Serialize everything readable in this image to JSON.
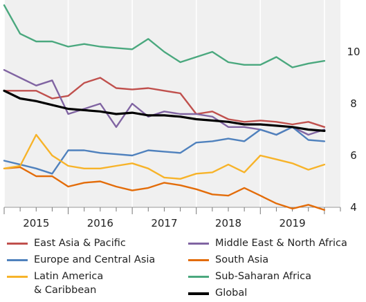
{
  "chart_data": {
    "type": "line",
    "title": "",
    "xlabel": "",
    "ylabel": "",
    "x_ticks": [
      "2015",
      "2016",
      "2017",
      "2018",
      "2019"
    ],
    "y_ticks": [
      4,
      6,
      8,
      10
    ],
    "ylim": [
      4,
      12
    ],
    "xlim": [
      2014.5,
      2019.75
    ],
    "grid": "vertical",
    "legend_position": "bottom",
    "series": [
      {
        "name": "East Asia & Pacific",
        "color": "#c0504d",
        "x": [
          2014.5,
          2014.75,
          2015.0,
          2015.25,
          2015.5,
          2015.75,
          2016.0,
          2016.25,
          2016.5,
          2016.75,
          2017.0,
          2017.25,
          2017.5,
          2017.75,
          2018.0,
          2018.25,
          2018.5,
          2018.75,
          2019.0,
          2019.25,
          2019.5
        ],
        "values": [
          8.5,
          8.5,
          8.5,
          8.2,
          8.3,
          8.8,
          9.0,
          8.6,
          8.55,
          8.6,
          8.5,
          8.4,
          7.6,
          7.7,
          7.4,
          7.3,
          7.35,
          7.3,
          7.2,
          7.3,
          7.1
        ]
      },
      {
        "name": "Middle East & North Africa",
        "color": "#8064a2",
        "x": [
          2014.5,
          2014.75,
          2015.0,
          2015.25,
          2015.5,
          2015.75,
          2016.0,
          2016.25,
          2016.5,
          2016.75,
          2017.0,
          2017.25,
          2017.5,
          2017.75,
          2018.0,
          2018.25,
          2018.5,
          2018.75,
          2019.0,
          2019.25,
          2019.5
        ],
        "values": [
          9.3,
          9.0,
          8.7,
          8.9,
          7.6,
          7.8,
          8.0,
          7.1,
          8.0,
          7.5,
          7.7,
          7.6,
          7.6,
          7.5,
          7.1,
          7.1,
          7.0,
          6.8,
          7.1,
          6.8,
          7.0
        ]
      },
      {
        "name": "Europe and Central Asia",
        "color": "#4f81bd",
        "x": [
          2014.5,
          2014.75,
          2015.0,
          2015.25,
          2015.5,
          2015.75,
          2016.0,
          2016.25,
          2016.5,
          2016.75,
          2017.0,
          2017.25,
          2017.5,
          2017.75,
          2018.0,
          2018.25,
          2018.5,
          2018.75,
          2019.0,
          2019.25,
          2019.5
        ],
        "values": [
          5.8,
          5.65,
          5.5,
          5.3,
          6.2,
          6.2,
          6.1,
          6.05,
          6.0,
          6.2,
          6.15,
          6.1,
          6.5,
          6.55,
          6.65,
          6.55,
          7.0,
          6.8,
          7.1,
          6.6,
          6.55
        ]
      },
      {
        "name": "South Asia",
        "color": "#e36c09",
        "x": [
          2014.5,
          2014.75,
          2015.0,
          2015.25,
          2015.5,
          2015.75,
          2016.0,
          2016.25,
          2016.5,
          2016.75,
          2017.0,
          2017.25,
          2017.5,
          2017.75,
          2018.0,
          2018.25,
          2018.5,
          2018.75,
          2019.0,
          2019.25,
          2019.5
        ],
        "values": [
          5.5,
          5.55,
          5.2,
          5.2,
          4.8,
          4.95,
          5.0,
          4.8,
          4.65,
          4.75,
          4.95,
          4.85,
          4.7,
          4.5,
          4.45,
          4.75,
          4.45,
          4.15,
          3.95,
          4.1,
          3.9
        ]
      },
      {
        "name": "Latin America\n& Caribbean",
        "color": "#f7b329",
        "x": [
          2014.5,
          2014.75,
          2015.0,
          2015.25,
          2015.5,
          2015.75,
          2016.0,
          2016.25,
          2016.5,
          2016.75,
          2017.0,
          2017.25,
          2017.5,
          2017.75,
          2018.0,
          2018.25,
          2018.5,
          2018.75,
          2019.0,
          2019.25,
          2019.5
        ],
        "values": [
          5.5,
          5.6,
          6.8,
          6.0,
          5.6,
          5.5,
          5.5,
          5.6,
          5.7,
          5.5,
          5.15,
          5.1,
          5.3,
          5.35,
          5.65,
          5.35,
          6.0,
          5.85,
          5.7,
          5.45,
          5.65
        ]
      },
      {
        "name": "Sub-Saharan Africa",
        "color": "#4aa87e",
        "x": [
          2014.5,
          2014.75,
          2015.0,
          2015.25,
          2015.5,
          2015.75,
          2016.0,
          2016.25,
          2016.5,
          2016.75,
          2017.0,
          2017.25,
          2017.5,
          2017.75,
          2018.0,
          2018.25,
          2018.5,
          2018.75,
          2019.0,
          2019.25,
          2019.5
        ],
        "values": [
          11.8,
          10.7,
          10.4,
          10.4,
          10.2,
          10.3,
          10.2,
          10.15,
          10.1,
          10.5,
          10.0,
          9.6,
          9.8,
          10.0,
          9.6,
          9.5,
          9.5,
          9.8,
          9.4,
          9.55,
          9.65
        ]
      },
      {
        "name": "Global",
        "color": "#000000",
        "x": [
          2014.5,
          2014.75,
          2015.0,
          2015.25,
          2015.5,
          2015.75,
          2016.0,
          2016.25,
          2016.5,
          2016.75,
          2017.0,
          2017.25,
          2017.5,
          2017.75,
          2018.0,
          2018.25,
          2018.5,
          2018.75,
          2019.0,
          2019.25,
          2019.5
        ],
        "values": [
          8.5,
          8.2,
          8.1,
          7.95,
          7.8,
          7.75,
          7.7,
          7.6,
          7.65,
          7.55,
          7.55,
          7.5,
          7.4,
          7.35,
          7.3,
          7.2,
          7.2,
          7.15,
          7.1,
          7.0,
          6.95
        ]
      }
    ]
  },
  "legend": {
    "items": [
      {
        "label": "East Asia & Pacific",
        "color": "#c0504d"
      },
      {
        "label": "Middle East & North Africa",
        "color": "#8064a2"
      },
      {
        "label": "Europe and Central Asia",
        "color": "#4f81bd"
      },
      {
        "label": "South Asia",
        "color": "#e36c09"
      },
      {
        "label": "Latin America\n& Caribbean",
        "color": "#f7b329"
      },
      {
        "label": "Sub-Saharan Africa",
        "color": "#4aa87e"
      },
      {
        "label": "Global",
        "color": "#000000"
      }
    ]
  }
}
